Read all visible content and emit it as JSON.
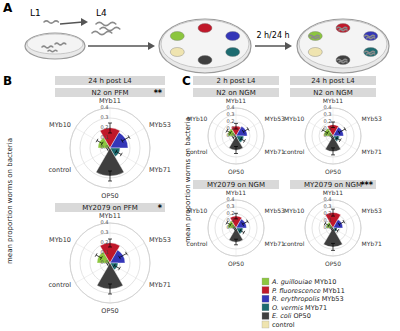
{
  "figure": {
    "panels": [
      {
        "letter": "A",
        "labels": [
          "L1",
          "L4"
        ],
        "time": "2 h/24 h"
      },
      {
        "letter": "B",
        "headers": [
          "24 h post L4"
        ],
        "y_label": "mean proportion worms on bacteria"
      },
      {
        "letter": "C",
        "headers": [
          "2 h post L4",
          "24 h post L4"
        ],
        "y_label": "mean proportion worms on bacteria"
      }
    ],
    "key": [
      {
        "label": "A. guillouiae MYb10",
        "color": "#8cc63f"
      },
      {
        "label": "P. fluorescence MYb11",
        "color": "#c0182a"
      },
      {
        "label": "R. erythropolis MYb53",
        "color": "#3436b8"
      },
      {
        "label": "O. vermis MYb71",
        "color": "#1d6b70"
      },
      {
        "label": "E. coli OP50",
        "color": "#3f3f3f"
      },
      {
        "label": "control",
        "color": "#efe4b0"
      }
    ]
  },
  "chart_data": [
    {
      "type": "rose",
      "title": "N2 on PFM",
      "annotation": "**",
      "categories": [
        "MYb10",
        "MYb11",
        "MYb53",
        "MYb71",
        "OP50",
        "control"
      ],
      "values": [
        0.12,
        0.2,
        0.18,
        0.1,
        0.28,
        0.02
      ],
      "errors": [
        0.03,
        0.05,
        0.04,
        0.03,
        0.05,
        0.01
      ],
      "colors": [
        "#8cc63f",
        "#c0182a",
        "#3436b8",
        "#1d6b70",
        "#3f3f3f",
        "#efe4b0"
      ],
      "ylim": [
        0,
        0.4
      ],
      "yticks": [
        {
          "value": 0,
          "label": "0.0"
        },
        0.1,
        0.2,
        0.3,
        0.4
      ],
      "grid": true
    },
    {
      "type": "rose",
      "title": "MY2079 on PFM",
      "annotation": "*",
      "categories": [
        "MYb10",
        "MYb11",
        "MYb53",
        "MYb71",
        "OP50",
        "control"
      ],
      "values": [
        0.13,
        0.2,
        0.15,
        0.08,
        0.26,
        0.02
      ],
      "errors": [
        0.03,
        0.04,
        0.04,
        0.03,
        0.05,
        0.01
      ],
      "colors": [
        "#8cc63f",
        "#c0182a",
        "#3436b8",
        "#1d6b70",
        "#3f3f3f",
        "#efe4b0"
      ],
      "ylim": [
        0,
        0.4
      ],
      "yticks": [
        {
          "value": 0,
          "label": "0.0"
        },
        0.1,
        0.2,
        0.3,
        0.4
      ],
      "grid": true
    },
    {
      "type": "rose",
      "title": "N2 on NGM",
      "categories": [
        "MYb10",
        "MYb11",
        "MYb53",
        "MYb71",
        "OP50",
        "control"
      ],
      "values": [
        0.12,
        0.14,
        0.16,
        0.11,
        0.2,
        0.03
      ],
      "errors": [
        0.03,
        0.04,
        0.04,
        0.03,
        0.05,
        0.02
      ],
      "colors": [
        "#8cc63f",
        "#c0182a",
        "#3436b8",
        "#1d6b70",
        "#3f3f3f",
        "#efe4b0"
      ],
      "ylim": [
        0,
        0.4
      ],
      "yticks": [
        {
          "value": 0,
          "label": "0.0"
        },
        0.1,
        0.2,
        0.3,
        0.4
      ],
      "grid": true
    },
    {
      "type": "rose",
      "title": "N2 on NGM",
      "categories": [
        "MYb10",
        "MYb11",
        "MYb53",
        "MYb71",
        "OP50",
        "control"
      ],
      "values": [
        0.13,
        0.16,
        0.15,
        0.09,
        0.22,
        0.02
      ],
      "errors": [
        0.04,
        0.04,
        0.05,
        0.03,
        0.05,
        0.01
      ],
      "colors": [
        "#8cc63f",
        "#c0182a",
        "#3436b8",
        "#1d6b70",
        "#3f3f3f",
        "#efe4b0"
      ],
      "ylim": [
        0,
        0.4
      ],
      "yticks": [
        {
          "value": 0,
          "label": "0.0"
        },
        0.1,
        0.2,
        0.3,
        0.4
      ],
      "grid": true
    },
    {
      "type": "rose",
      "title": "MY2079 on NGM",
      "categories": [
        "MYb10",
        "MYb11",
        "MYb53",
        "MYb71",
        "OP50",
        "control"
      ],
      "values": [
        0.12,
        0.17,
        0.15,
        0.1,
        0.2,
        0.02
      ],
      "errors": [
        0.03,
        0.04,
        0.04,
        0.03,
        0.04,
        0.01
      ],
      "colors": [
        "#8cc63f",
        "#c0182a",
        "#3436b8",
        "#1d6b70",
        "#3f3f3f",
        "#efe4b0"
      ],
      "ylim": [
        0,
        0.4
      ],
      "yticks": [
        {
          "value": 0,
          "label": "0.0"
        },
        0.1,
        0.2,
        0.3,
        0.4
      ],
      "grid": true
    },
    {
      "type": "rose",
      "title": "MY2079 on NGM",
      "annotation": "***",
      "categories": [
        "MYb10",
        "MYb11",
        "MYb53",
        "MYb71",
        "OP50",
        "control"
      ],
      "values": [
        0.1,
        0.22,
        0.14,
        0.06,
        0.27,
        0.02
      ],
      "errors": [
        0.03,
        0.05,
        0.04,
        0.02,
        0.05,
        0.01
      ],
      "colors": [
        "#8cc63f",
        "#c0182a",
        "#3436b8",
        "#1d6b70",
        "#3f3f3f",
        "#efe4b0"
      ],
      "ylim": [
        0,
        0.4
      ],
      "yticks": [
        {
          "value": 0,
          "label": "0.0"
        },
        0.1,
        0.2,
        0.3,
        0.4
      ],
      "grid": true
    }
  ]
}
